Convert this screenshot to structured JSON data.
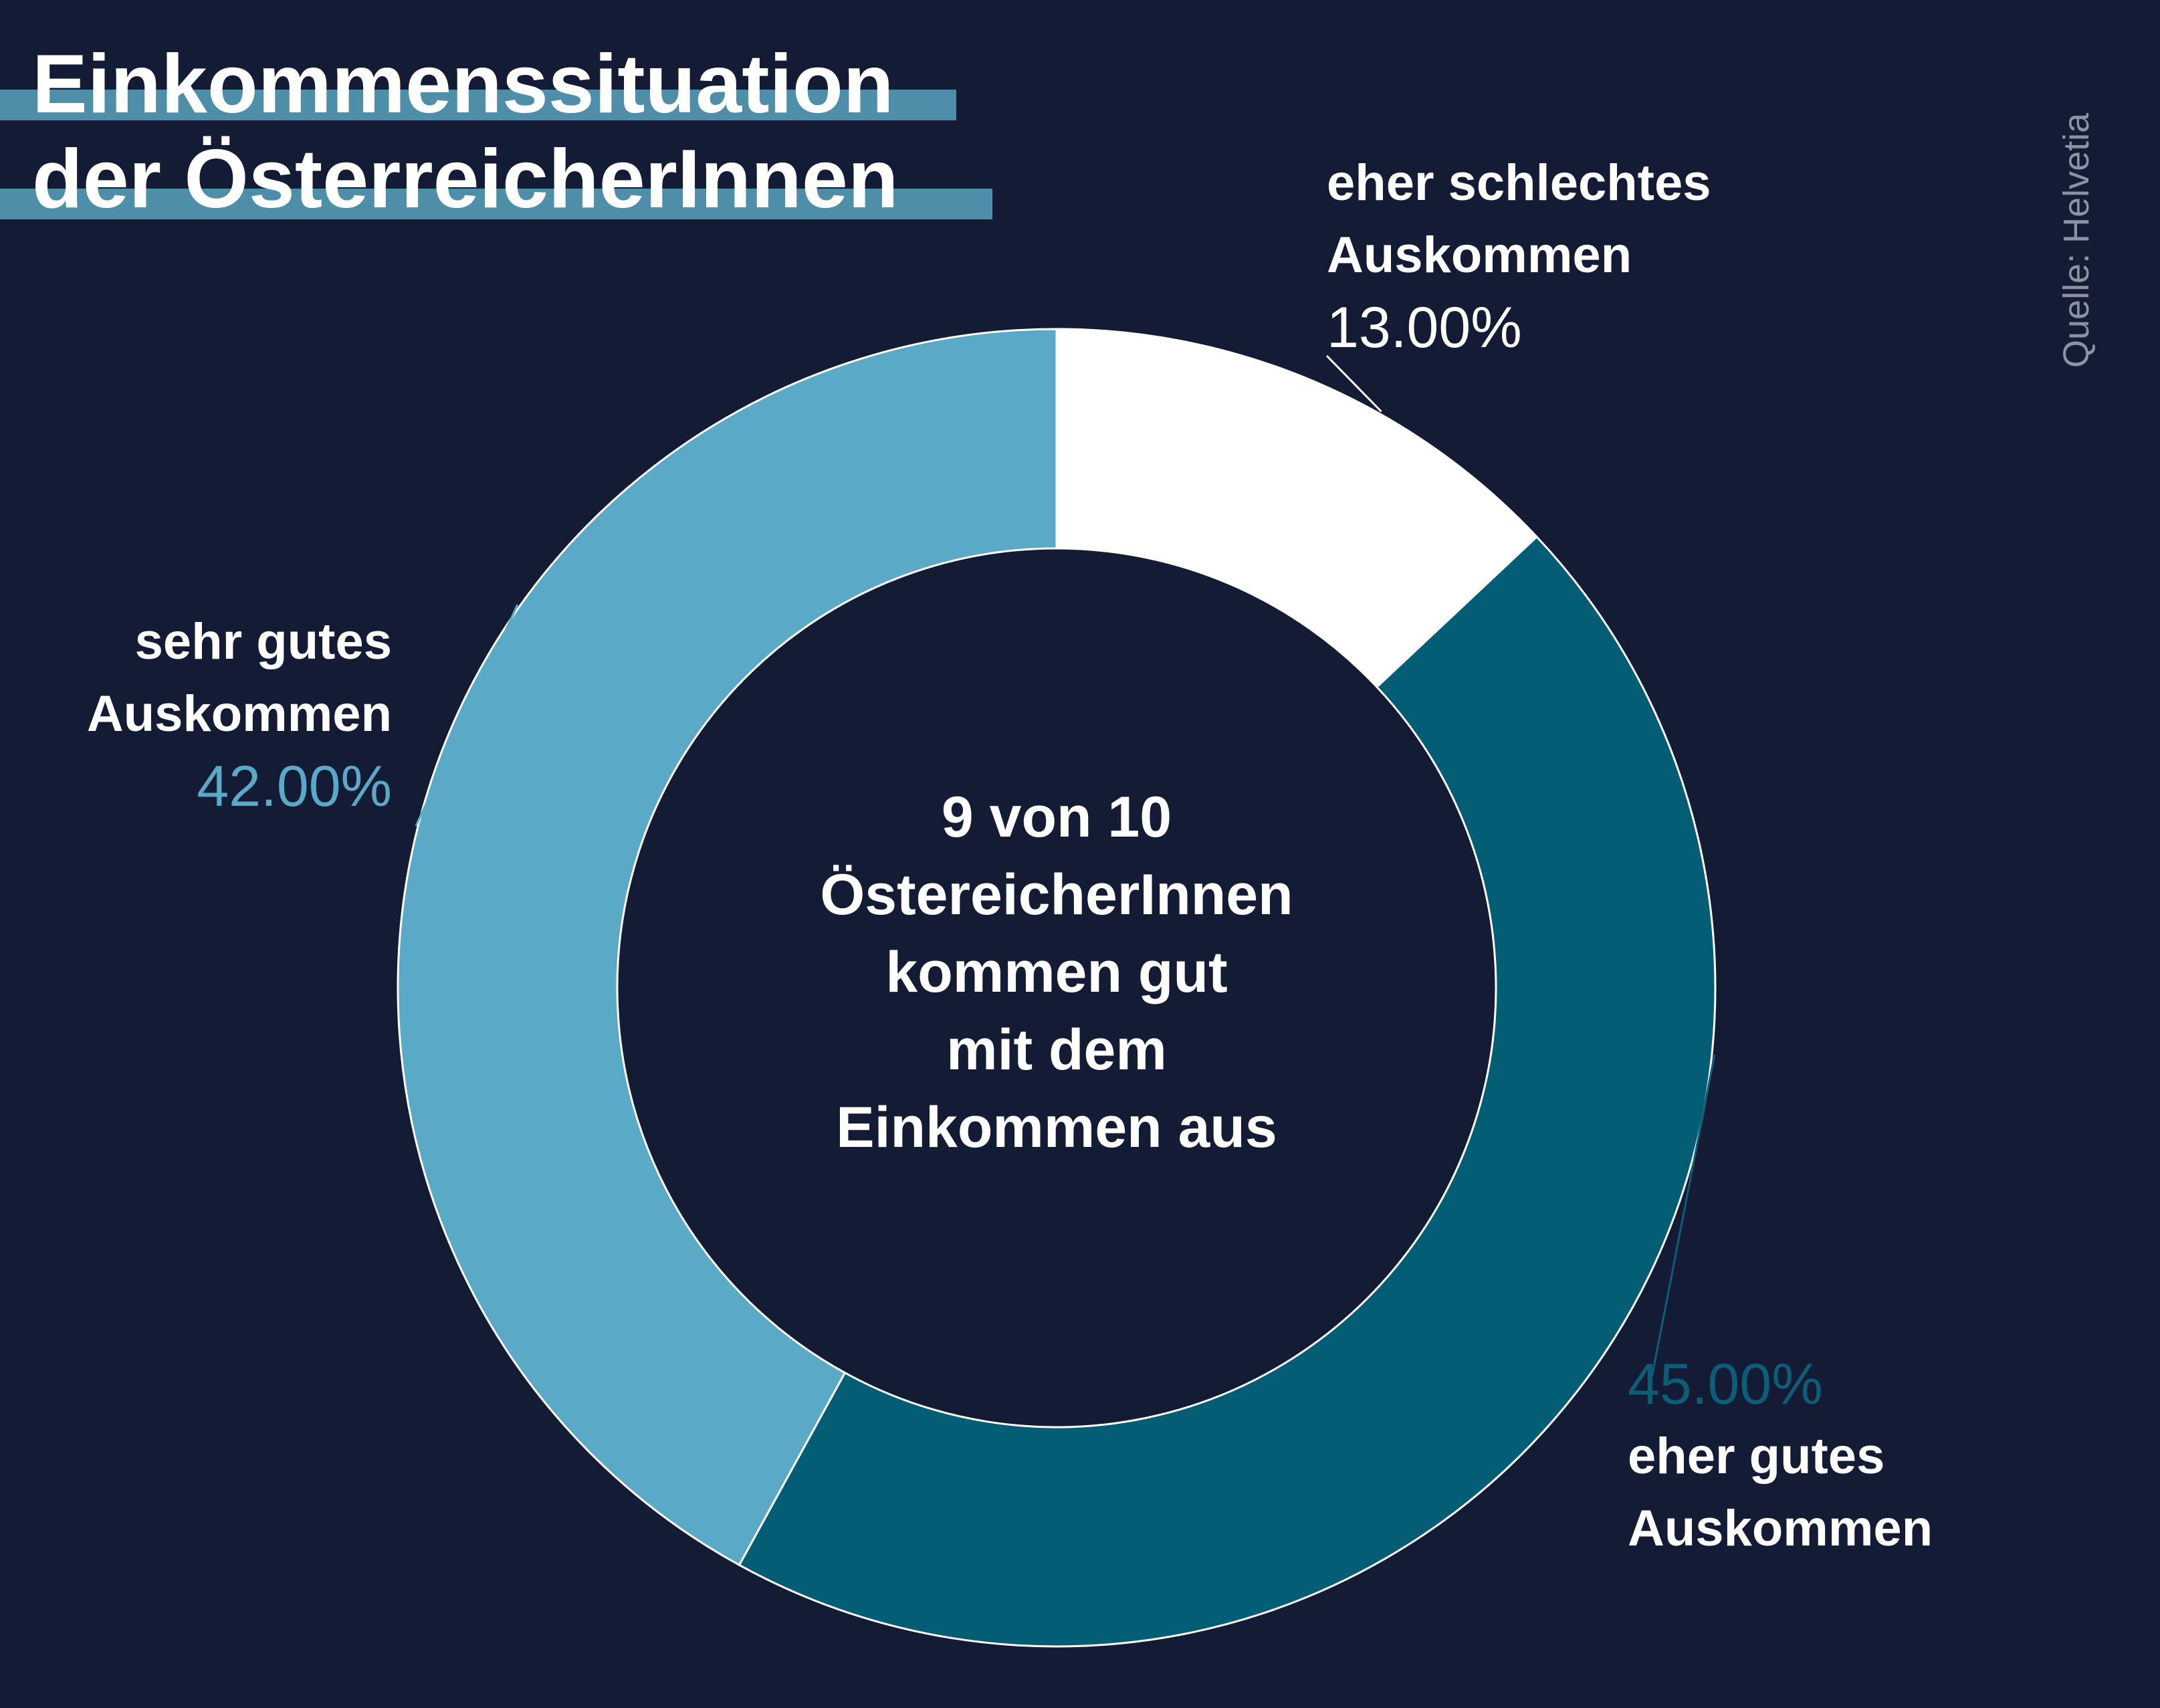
{
  "title": {
    "line1": "Einkommenssituation",
    "line2": "der ÖsterreicherInnen"
  },
  "source": "Quelle: Helvetia",
  "center_text": [
    "9 von 10",
    "ÖstereicherInnen",
    "kommen gut",
    "mit dem",
    "Einkommen aus"
  ],
  "chart_data": {
    "type": "pie",
    "variant": "donut",
    "title": "Einkommenssituation der ÖsterreicherInnen",
    "unit": "%",
    "slices": [
      {
        "label": "eher schlechtes Auskommen",
        "label_lines": [
          "eher schlechtes",
          "Auskommen"
        ],
        "value": 13.0,
        "value_label": "13.00%",
        "color": "#ffffff",
        "label_color": "#ffffff"
      },
      {
        "label": "eher gutes Auskommen",
        "label_lines": [
          "eher gutes",
          "Auskommen"
        ],
        "value": 45.0,
        "value_label": "45.00%",
        "color": "#025d75",
        "label_color": "#0e5d77"
      },
      {
        "label": "sehr gutes Auskommen",
        "label_lines": [
          "sehr gutes",
          "Auskommen"
        ],
        "value": 42.0,
        "value_label": "42.00%",
        "color": "#5aa9c7",
        "label_color": "#5aa9c7"
      }
    ],
    "start_angle_deg": 0,
    "direction": "clockwise",
    "background": "#141b35"
  }
}
